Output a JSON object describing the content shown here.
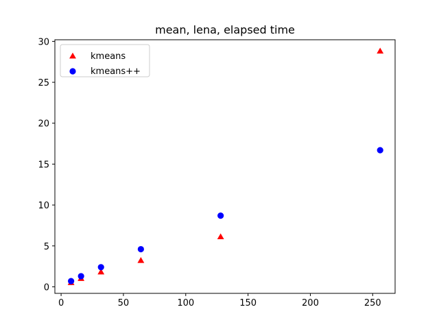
{
  "chart_data": {
    "type": "scatter",
    "title": "mean, lena, elapsed time",
    "xlabel": "",
    "ylabel": "",
    "xlim": [
      -5,
      268
    ],
    "ylim": [
      -0.8,
      30.2
    ],
    "xticks": [
      0,
      50,
      100,
      150,
      200,
      250
    ],
    "yticks": [
      0,
      5,
      10,
      15,
      20,
      25,
      30
    ],
    "xtick_labels": [
      "0",
      "50",
      "100",
      "150",
      "200",
      "250"
    ],
    "ytick_labels": [
      "0",
      "5",
      "10",
      "15",
      "20",
      "25",
      "30"
    ],
    "grid": false,
    "legend_position": "upper-left",
    "series": [
      {
        "name": "kmeans",
        "marker": "triangle",
        "color": "#ff0000",
        "x": [
          8,
          16,
          32,
          64,
          128,
          256
        ],
        "y": [
          0.5,
          1.0,
          1.8,
          3.2,
          6.1,
          28.8
        ]
      },
      {
        "name": "kmeans++",
        "marker": "circle",
        "color": "#0000ff",
        "x": [
          8,
          16,
          32,
          64,
          128,
          256
        ],
        "y": [
          0.7,
          1.3,
          2.4,
          4.6,
          8.7,
          16.7
        ]
      }
    ]
  }
}
